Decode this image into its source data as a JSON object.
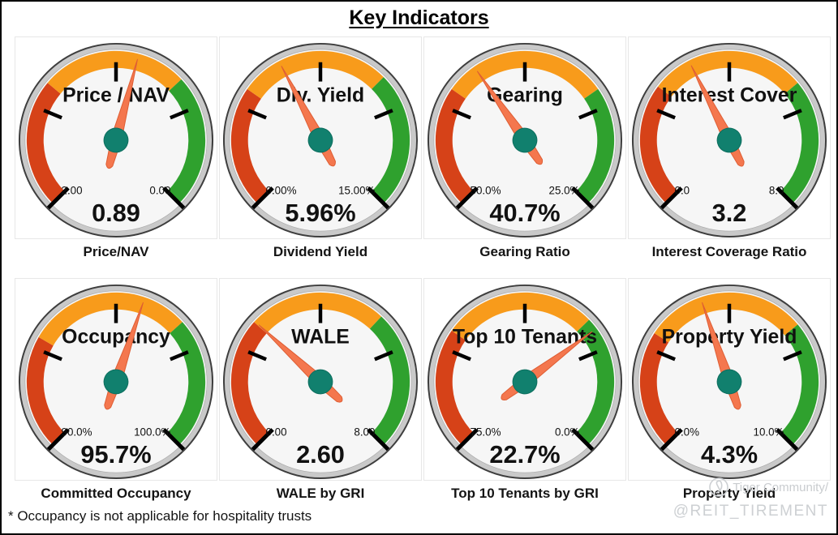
{
  "page": {
    "title": "Key Indicators",
    "footnote": "* Occupancy is not applicable for hospitality trusts"
  },
  "watermark": {
    "logo_icon": "tiger-community-logo-icon",
    "line1": "Tiger Community/",
    "line2": "@REIT_TIREMENT"
  },
  "palette": {
    "red": "#D64218",
    "orange": "#F89B1B",
    "green": "#2FA12E",
    "needle": "#F4774E",
    "needle_stroke": "#DE5D33",
    "hub": "#11806E",
    "hub_stroke": "#0D6E5E",
    "ring": "#C9C9C9",
    "ring_outline": "#3E3E3E",
    "face": "#F6F6F6",
    "tick": "#000000"
  },
  "chart_data": {
    "type": "gauge",
    "layout": {
      "rows": 2,
      "cols": 4,
      "sweep_start_deg": -135,
      "sweep_end_deg": 135
    },
    "gauges": [
      {
        "title": "Price / NAV",
        "caption": "Price/NAV",
        "min": 2.0,
        "max": 0.0,
        "min_label": "2.00",
        "max_label": "0.00",
        "value": 0.89,
        "value_label": "0.89",
        "red_end_deg": -50,
        "green_start_deg": 47
      },
      {
        "title": "Div. Yield",
        "caption": "Dividend Yield",
        "min": 0.0,
        "max": 15.0,
        "min_label": "0.00%",
        "max_label": "15.00%",
        "value": 5.96,
        "value_label": "5.96%",
        "red_end_deg": -55,
        "green_start_deg": 45
      },
      {
        "title": "Gearing",
        "caption": "Gearing Ratio",
        "min": 50.0,
        "max": 25.0,
        "min_label": "50.0%",
        "max_label": "25.0%",
        "value": 40.7,
        "value_label": "40.7%",
        "red_end_deg": -55,
        "green_start_deg": 55
      },
      {
        "title": "Interest Cover",
        "caption": "Interest Coverage Ratio",
        "min": 0.0,
        "max": 8.0,
        "min_label": "0.0",
        "max_label": "8.0",
        "value": 3.2,
        "value_label": "3.2",
        "red_end_deg": -53,
        "green_start_deg": 50
      },
      {
        "title": "Occupancy",
        "caption": "Committed Occupancy",
        "min": 90.0,
        "max": 100.0,
        "min_label": "90.0%",
        "max_label": "100.0%",
        "value": 95.7,
        "value_label": "95.7%",
        "red_end_deg": -60,
        "green_start_deg": 48
      },
      {
        "title": "WALE",
        "caption": "WALE by GRI",
        "min": 0.0,
        "max": 8.0,
        "min_label": "0.00",
        "max_label": "8.00",
        "value": 2.6,
        "value_label": "2.60",
        "red_end_deg": -48,
        "green_start_deg": 43
      },
      {
        "title": "Top 10 Tenants",
        "caption": "Top 10 Tenants by GRI",
        "min": 75.0,
        "max": 0.0,
        "min_label": "75.0%",
        "max_label": "0.0%",
        "value": 22.7,
        "value_label": "22.7%",
        "red_end_deg": -55,
        "green_start_deg": 46
      },
      {
        "title": "Property Yield",
        "caption": "Property Yield",
        "min": 0.0,
        "max": 10.0,
        "min_label": "0.0%",
        "max_label": "10.0%",
        "value": 4.3,
        "value_label": "4.3%",
        "red_end_deg": -57,
        "green_start_deg": 50
      }
    ]
  }
}
